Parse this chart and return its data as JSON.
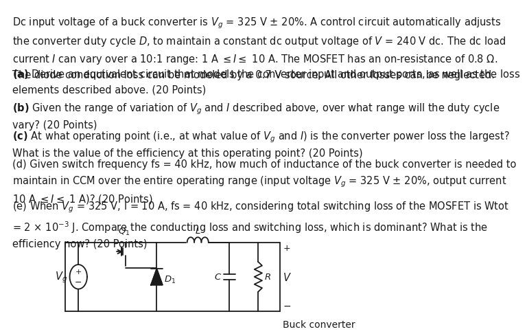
{
  "bg_color": "#ffffff",
  "text_color": "#1a1a1a",
  "title_text": "Dc input voltage of a buck converter is $V_g$ = 325 V ± 20%. A control circuit automatically adjusts\nthe converter duty cycle $D$, to maintain a constant dc output voltage of $V$ = 240 V dc. The dc load\ncurrent $I$ can vary over a 10:1 range: 1 A ≤ $I$ ≤ 10 A. The MOSFET has an on-resistance of 0.8 Ω.\nThe diode conduction loss can be modeled by a 0.7 V source. All other losses can be neglected.",
  "part_a": "(a) Derive an equivalent circuit that models the converter input and output ports, as well as the loss\nelements described above. (20 Points)",
  "part_b": "(b) Given the range of variation of $V_g$ and $I$ described above, over what range will the duty cycle\nvary? (20 Points)",
  "part_c": "(c) At what operating point (i.e., at what value of $V_g$ and $I$) is the converter power loss the largest?\nWhat is the value of the efficiency at this operating point? (20 Points)",
  "part_d": "(d) Given switch frequency fs = 40 kHz, how much of inductance of the buck converter is needed to\nmaintain in CCM over the entire operating range (input voltage $V_g$ = 325 V ± 20%, output current\n10 A ≤ $I$ ≤ 1 A)? (20 Points)",
  "part_e": "(e) When $V_g$ = 325 V, I = 10 A, fs = 40 kHz, considering total switching loss of the MOSFET is Wtot\n= 2 × 10⁻³ J. Compare the conducting loss and switching loss, which is dominant? What is the\nefficiency now? (20 Points)",
  "circuit_label": "Buck converter",
  "font_size": 10.5
}
